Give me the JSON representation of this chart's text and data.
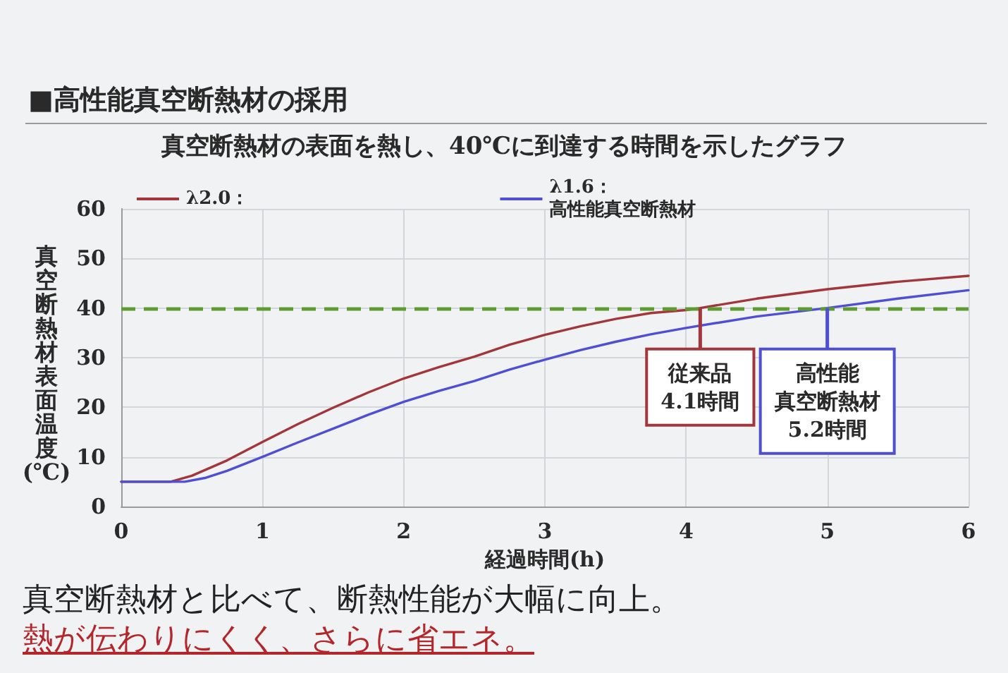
{
  "chart_data": {
    "type": "line",
    "title": "■高性能真空断熱材の採用",
    "subtitle": "真空断熱材の表面を熱し、40℃に到達する時間を示したグラフ",
    "xlabel": "経過時間(h)",
    "ylabel": "真空断熱材表面温度(℃)",
    "series": [
      {
        "name": "λ2.0：",
        "color": "#a3363b",
        "x": [
          0,
          0.35,
          0.5,
          0.75,
          1,
          1.25,
          1.5,
          1.75,
          2,
          2.25,
          2.5,
          2.75,
          3,
          3.25,
          3.5,
          3.75,
          4,
          4.1,
          4.5,
          5,
          5.5,
          6
        ],
        "values": [
          5,
          5,
          6.2,
          9.3,
          13,
          16.6,
          19.9,
          23,
          25.8,
          28.1,
          30.2,
          32.6,
          34.6,
          36.3,
          37.8,
          39,
          39.6,
          40,
          41.9,
          43.8,
          45.3,
          46.5
        ]
      },
      {
        "name": "λ1.6：高性能真空断熱材",
        "color": "#4f4fd6",
        "x": [
          0,
          0.45,
          0.6,
          0.75,
          1,
          1.25,
          1.5,
          1.75,
          2,
          2.25,
          2.5,
          2.75,
          3,
          3.25,
          3.5,
          3.75,
          4,
          4.5,
          5,
          5.5,
          6
        ],
        "values": [
          5,
          5,
          5.8,
          7.2,
          10,
          12.9,
          15.7,
          18.5,
          21.1,
          23.3,
          25.3,
          27.6,
          29.6,
          31.5,
          33.2,
          34.7,
          36,
          38.3,
          40,
          41.9,
          43.6
        ]
      }
    ],
    "xlim": [
      0,
      6
    ],
    "xticks": [
      0,
      1,
      2,
      3,
      4,
      5,
      6
    ],
    "ylim": [
      0,
      60
    ],
    "yticks": [
      0,
      10,
      20,
      30,
      40,
      50,
      60
    ],
    "grid": true,
    "legend": "top",
    "marker": "none",
    "line_style": "solid",
    "ref_lines": [
      {
        "axis": "y",
        "value": 40,
        "color": "#5f9b33",
        "line_style": "dashed"
      }
    ],
    "annotations": [
      {
        "text": "従来品4.1時間",
        "x": 4.1,
        "y": 40
      },
      {
        "text": "高性能真空断熱材5.2時間",
        "x": 5.0,
        "y": 40
      },
      "真空断熱材と比べて、断熱性能が大幅に向上。",
      "熱が伝わりにくく、さらに省エネ。"
    ]
  }
}
